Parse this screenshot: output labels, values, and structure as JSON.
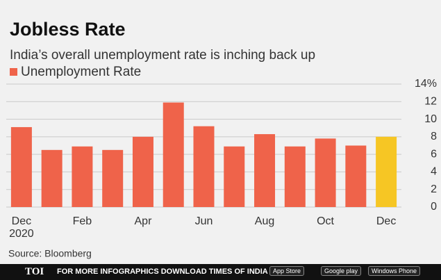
{
  "chart_data": {
    "type": "bar",
    "title": "Jobless Rate",
    "subtitle": "India’s overall unemployment rate is inching back up",
    "legend": "Unemployment Rate",
    "categories": [
      "Dec 2020",
      null,
      "Feb",
      null,
      "Apr",
      null,
      "Jun",
      null,
      "Aug",
      null,
      "Oct",
      null,
      "Dec"
    ],
    "values": [
      9.1,
      6.5,
      6.9,
      6.5,
      8.0,
      11.9,
      9.2,
      6.9,
      8.3,
      6.9,
      7.8,
      7.0,
      8.0
    ],
    "colors": [
      "#ef634a",
      "#ef634a",
      "#ef634a",
      "#ef634a",
      "#ef634a",
      "#ef634a",
      "#ef634a",
      "#ef634a",
      "#ef634a",
      "#ef634a",
      "#ef634a",
      "#ef634a",
      "#f6c624"
    ],
    "ylim": [
      0,
      14
    ],
    "yticks": [
      0,
      2,
      4,
      6,
      8,
      10,
      12,
      {
        "value": 14,
        "label": "14%"
      }
    ],
    "grid": true,
    "source": "Source: Bloomberg"
  },
  "footer": {
    "logo": "TOI",
    "text": "FOR MORE  INFOGRAPHICS DOWNLOAD TIMES OF INDIA APP",
    "badges": [
      "App Store",
      "Google play",
      "Windows Phone"
    ]
  }
}
